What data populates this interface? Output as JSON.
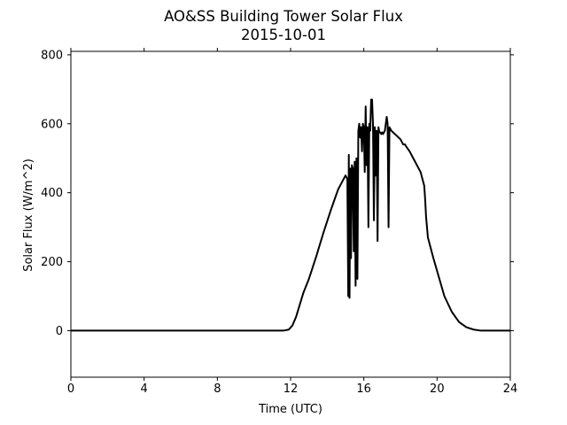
{
  "chart_data": {
    "type": "line",
    "title": "AO&SS Building Tower Solar Flux",
    "subtitle": "2015-10-01",
    "xlabel": "Time (UTC)",
    "ylabel": "Solar Flux (W/m^2)",
    "xlim": [
      0,
      24
    ],
    "ylim": [
      -135,
      810
    ],
    "xticks": [
      0,
      4,
      8,
      12,
      16,
      20,
      24
    ],
    "yticks": [
      0,
      200,
      400,
      600,
      800
    ],
    "grid": false,
    "legend": "none",
    "line_color": "#000000",
    "series": [
      {
        "x": [
          0,
          11.6,
          11.9,
          12.1,
          12.3,
          12.5,
          12.7,
          13.0,
          13.4,
          13.8,
          14.2,
          14.6,
          15.0,
          15.1,
          15.15,
          15.18,
          15.22,
          15.26,
          15.3,
          15.35,
          15.4,
          15.45,
          15.5,
          15.55,
          15.6,
          15.65,
          15.7,
          15.75,
          15.8,
          15.85,
          15.9,
          15.95,
          16.0,
          16.05,
          16.1,
          16.15,
          16.2,
          16.25,
          16.3,
          16.35,
          16.4,
          16.45,
          16.5,
          16.55,
          16.6,
          16.65,
          16.7,
          16.75,
          16.8,
          16.85,
          16.9,
          16.95,
          17.0,
          17.05,
          17.1,
          17.15,
          17.2,
          17.25,
          17.3,
          17.35,
          17.4,
          17.45,
          17.5,
          17.6,
          17.8,
          17.9,
          18.0,
          18.1,
          18.15,
          18.2,
          18.25,
          18.3,
          18.5,
          18.8,
          19.1,
          19.3,
          19.35,
          19.4,
          19.5,
          19.8,
          20.1,
          20.4,
          20.8,
          21.2,
          21.6,
          22.0,
          22.4,
          22.8,
          23.1,
          23.3,
          23.5,
          23.7,
          23.85,
          24.0
        ],
        "y": [
          0,
          0,
          3,
          15,
          40,
          75,
          110,
          150,
          215,
          285,
          350,
          410,
          450,
          440,
          100,
          510,
          95,
          470,
          210,
          480,
          470,
          230,
          490,
          130,
          500,
          150,
          580,
          600,
          560,
          590,
          520,
          600,
          590,
          460,
          650,
          480,
          590,
          300,
          600,
          580,
          670,
          670,
          600,
          320,
          590,
          450,
          580,
          260,
          590,
          575,
          575,
          570,
          575,
          570,
          575,
          580,
          600,
          620,
          600,
          300,
          590,
          585,
          580,
          575,
          565,
          560,
          555,
          545,
          540,
          540,
          540,
          535,
          520,
          490,
          460,
          420,
          380,
          330,
          270,
          210,
          155,
          100,
          55,
          25,
          10,
          3,
          0,
          0,
          0,
          0,
          0,
          0,
          0,
          0
        ]
      }
    ]
  }
}
